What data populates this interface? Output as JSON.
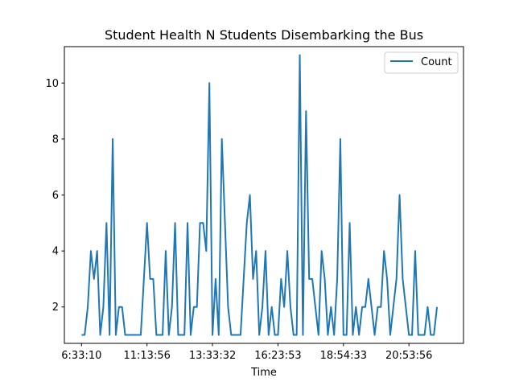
{
  "chart_data": {
    "type": "line",
    "title": "Student Health N Students Disembarking the Bus",
    "xlabel": "Time",
    "ylabel": "",
    "legend": {
      "position": "top-right",
      "entries": [
        "Count"
      ]
    },
    "grid": false,
    "xlim": [
      -5.5,
      122.5
    ],
    "ylim": [
      0.7,
      11.3
    ],
    "x_ticks": [
      {
        "index": 0,
        "label": "6:33:10"
      },
      {
        "index": 21,
        "label": "11:13:56"
      },
      {
        "index": 42,
        "label": "13:33:32"
      },
      {
        "index": 63,
        "label": "16:23:53"
      },
      {
        "index": 84,
        "label": "18:54:33"
      },
      {
        "index": 105,
        "label": "20:53:56"
      }
    ],
    "y_ticks": [
      2,
      4,
      6,
      8,
      10
    ],
    "series": [
      {
        "name": "Count",
        "color": "#1f77b4",
        "values": [
          1,
          1,
          2,
          4,
          3,
          4,
          1,
          2,
          5,
          1,
          8,
          1,
          2,
          2,
          1,
          1,
          1,
          1,
          1,
          1,
          3,
          5,
          3,
          3,
          1,
          1,
          1,
          4,
          1,
          2,
          5,
          1,
          1,
          1,
          5,
          1,
          2,
          2,
          5,
          5,
          4,
          10,
          1,
          3,
          1,
          8,
          5,
          2,
          1,
          1,
          1,
          1,
          3,
          5,
          6,
          3,
          4,
          1,
          2,
          4,
          1,
          2,
          1,
          1,
          3,
          2,
          4,
          2,
          1,
          1,
          11,
          1,
          9,
          3,
          3,
          2,
          1,
          4,
          3,
          1,
          2,
          1,
          3,
          8,
          1,
          1,
          5,
          1,
          2,
          1,
          2,
          2,
          3,
          2,
          1,
          2,
          2,
          4,
          3,
          1,
          2,
          3,
          6,
          3,
          2,
          1,
          1,
          4,
          1,
          1,
          1,
          2,
          1,
          1,
          2
        ]
      }
    ]
  }
}
